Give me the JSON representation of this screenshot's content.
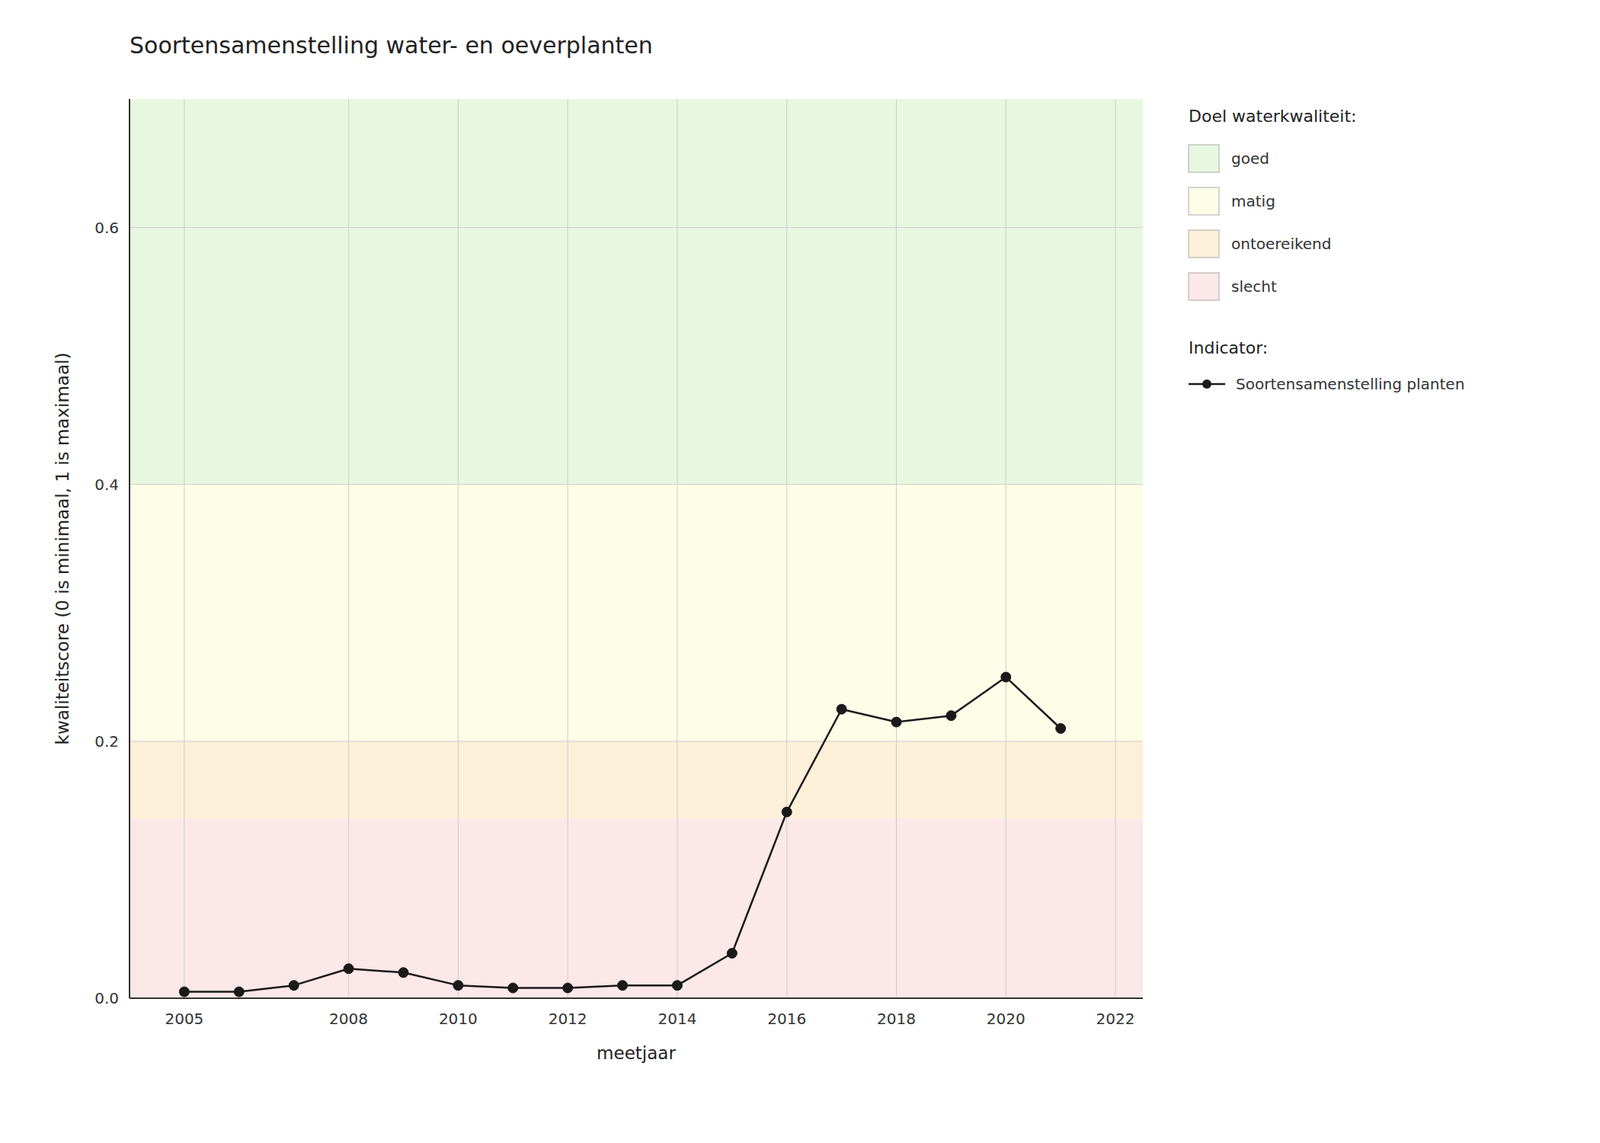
{
  "chart_data": {
    "type": "line",
    "title": "Soortensamenstelling water- en oeverplanten",
    "x_label": "meetjaar",
    "y_label": "kwaliteitscore (0 is minimaal, 1 is maximaal)",
    "x": [
      2005,
      2006,
      2007,
      2008,
      2009,
      2010,
      2011,
      2012,
      2013,
      2014,
      2015,
      2016,
      2017,
      2018,
      2019,
      2020,
      2021
    ],
    "series": [
      {
        "name": "Soortensamenstelling planten",
        "color": "#1a1a1a",
        "marker": "circle",
        "line_style": "solid",
        "values": [
          0.005,
          0.005,
          0.01,
          0.023,
          0.02,
          0.01,
          0.008,
          0.008,
          0.01,
          0.01,
          0.035,
          0.145,
          0.225,
          0.215,
          0.22,
          0.25,
          0.21
        ]
      }
    ],
    "bands": [
      {
        "name": "goed",
        "from": 0.4,
        "to": 0.7,
        "color": "#e8f8e0"
      },
      {
        "name": "matig",
        "from": 0.2,
        "to": 0.4,
        "color": "#fefee8"
      },
      {
        "name": "ontoereikend",
        "from": 0.14,
        "to": 0.2,
        "color": "#fdf0d8"
      },
      {
        "name": "slecht",
        "from": 0.0,
        "to": 0.14,
        "color": "#fce8e8"
      }
    ],
    "band_legend_title": "Doel waterkwaliteit:",
    "series_legend_title": "Indicator:",
    "xlim": [
      2004,
      2022.5
    ],
    "ylim": [
      0,
      0.7
    ],
    "xticks": [
      2005,
      2008,
      2010,
      2012,
      2014,
      2016,
      2018,
      2020,
      2022
    ],
    "yticks": [
      {
        "value": 0.0,
        "label": "0.0"
      },
      0.2,
      0.4,
      0.6
    ],
    "grid": true,
    "legend": "right"
  }
}
